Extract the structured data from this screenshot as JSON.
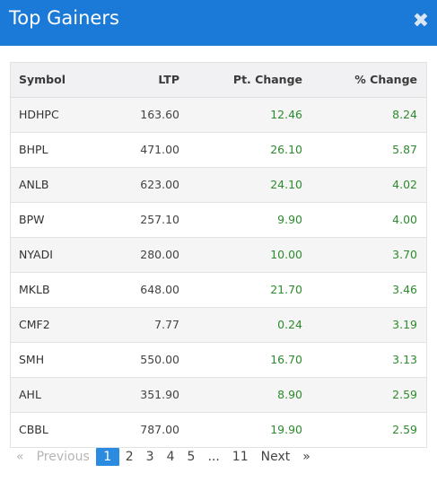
{
  "modal": {
    "title": "Top Gainers",
    "close_glyph": "✖"
  },
  "table": {
    "headers": {
      "symbol": "Symbol",
      "ltp": "LTP",
      "pt_change": "Pt. Change",
      "pct_change": "% Change"
    },
    "rows": [
      {
        "symbol": "HDHPC",
        "ltp": "163.60",
        "pt": "12.46",
        "pct": "8.24"
      },
      {
        "symbol": "BHPL",
        "ltp": "471.00",
        "pt": "26.10",
        "pct": "5.87"
      },
      {
        "symbol": "ANLB",
        "ltp": "623.00",
        "pt": "24.10",
        "pct": "4.02"
      },
      {
        "symbol": "BPW",
        "ltp": "257.10",
        "pt": "9.90",
        "pct": "4.00"
      },
      {
        "symbol": "NYADI",
        "ltp": "280.00",
        "pt": "10.00",
        "pct": "3.70"
      },
      {
        "symbol": "MKLB",
        "ltp": "648.00",
        "pt": "21.70",
        "pct": "3.46"
      },
      {
        "symbol": "CMF2",
        "ltp": "7.77",
        "pt": "0.24",
        "pct": "3.19"
      },
      {
        "symbol": "SMH",
        "ltp": "550.00",
        "pt": "16.70",
        "pct": "3.13"
      },
      {
        "symbol": "AHL",
        "ltp": "351.90",
        "pt": "8.90",
        "pct": "2.59"
      },
      {
        "symbol": "CBBL",
        "ltp": "787.00",
        "pt": "19.90",
        "pt_color": "#2e8a2e",
        "pct": "2.59"
      }
    ]
  },
  "pagination": {
    "first": "«",
    "previous": "Previous",
    "pages": [
      "1",
      "2",
      "3",
      "4",
      "5"
    ],
    "ellipsis": "...",
    "last_page": "11",
    "next": "Next",
    "last": "»"
  },
  "colors": {
    "header_bg": "#1b7ad7",
    "positive": "#2e8a2e",
    "active_page": "#2a8be0"
  }
}
